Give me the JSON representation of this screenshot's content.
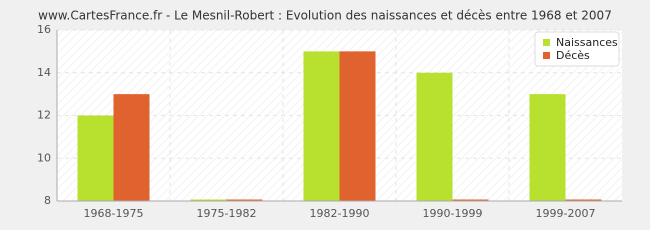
{
  "chart_data": {
    "type": "bar",
    "title": "www.CartesFrance.fr - Le Mesnil-Robert : Evolution des naissances et décès entre 1968 et 2007",
    "categories": [
      "1968-1975",
      "1975-1982",
      "1982-1990",
      "1990-1999",
      "1999-2007"
    ],
    "series": [
      {
        "name": "Naissances",
        "color": "#b8e02e",
        "values": [
          12,
          8,
          15,
          14,
          13
        ]
      },
      {
        "name": "Décès",
        "color": "#e0622e",
        "values": [
          13,
          8,
          15,
          8,
          8
        ]
      }
    ],
    "ylim": [
      8,
      16
    ],
    "yticks": [
      8,
      10,
      12,
      14,
      16
    ],
    "grid": true,
    "legend": "top-right"
  }
}
